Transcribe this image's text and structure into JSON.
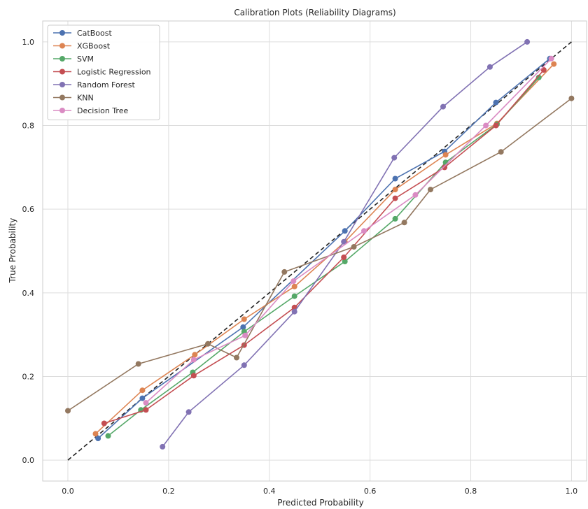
{
  "chart_data": {
    "type": "line",
    "title": "Calibration Plots (Reliability Diagrams)",
    "xlabel": "Predicted Probability",
    "ylabel": "True Probability",
    "xlim": [
      -0.05,
      1.03
    ],
    "ylim": [
      -0.05,
      1.05
    ],
    "xticks": [
      "0.0",
      "0.2",
      "0.4",
      "0.6",
      "0.8",
      "1.0"
    ],
    "yticks": [
      "0.0",
      "0.2",
      "0.4",
      "0.6",
      "0.8",
      "1.0"
    ],
    "grid": true,
    "legend_position": "top-left",
    "reference_line": {
      "style": "dashed",
      "color": "#222222",
      "points": [
        [
          0,
          0
        ],
        [
          1,
          1
        ]
      ]
    },
    "series": [
      {
        "name": "CatBoost",
        "color": "#4c72b0",
        "points": [
          [
            0.06,
            0.052
          ],
          [
            0.148,
            0.148
          ],
          [
            0.348,
            0.318
          ],
          [
            0.55,
            0.548
          ],
          [
            0.65,
            0.673
          ],
          [
            0.748,
            0.738
          ],
          [
            0.85,
            0.855
          ],
          [
            0.957,
            0.96
          ]
        ]
      },
      {
        "name": "XGBoost",
        "color": "#dd8452",
        "points": [
          [
            0.055,
            0.063
          ],
          [
            0.148,
            0.167
          ],
          [
            0.252,
            0.252
          ],
          [
            0.35,
            0.337
          ],
          [
            0.45,
            0.415
          ],
          [
            0.55,
            0.522
          ],
          [
            0.65,
            0.647
          ],
          [
            0.75,
            0.73
          ],
          [
            0.852,
            0.805
          ],
          [
            0.965,
            0.947
          ]
        ]
      },
      {
        "name": "SVM",
        "color": "#55a868",
        "points": [
          [
            0.08,
            0.058
          ],
          [
            0.145,
            0.12
          ],
          [
            0.248,
            0.21
          ],
          [
            0.35,
            0.307
          ],
          [
            0.45,
            0.392
          ],
          [
            0.55,
            0.475
          ],
          [
            0.65,
            0.577
          ],
          [
            0.75,
            0.712
          ],
          [
            0.852,
            0.803
          ],
          [
            0.935,
            0.915
          ]
        ]
      },
      {
        "name": "Logistic Regression",
        "color": "#c44e52",
        "points": [
          [
            0.072,
            0.088
          ],
          [
            0.155,
            0.12
          ],
          [
            0.25,
            0.202
          ],
          [
            0.35,
            0.275
          ],
          [
            0.45,
            0.365
          ],
          [
            0.548,
            0.485
          ],
          [
            0.65,
            0.626
          ],
          [
            0.748,
            0.7
          ],
          [
            0.85,
            0.8
          ],
          [
            0.945,
            0.933
          ]
        ]
      },
      {
        "name": "Random Forest",
        "color": "#8172b3",
        "points": [
          [
            0.188,
            0.032
          ],
          [
            0.24,
            0.115
          ],
          [
            0.35,
            0.227
          ],
          [
            0.45,
            0.355
          ],
          [
            0.548,
            0.522
          ],
          [
            0.648,
            0.723
          ],
          [
            0.745,
            0.845
          ],
          [
            0.838,
            0.94
          ],
          [
            0.912,
            1.0
          ]
        ]
      },
      {
        "name": "KNN",
        "color": "#937860",
        "points": [
          [
            0.0,
            0.118
          ],
          [
            0.14,
            0.23
          ],
          [
            0.278,
            0.278
          ],
          [
            0.335,
            0.245
          ],
          [
            0.43,
            0.45
          ],
          [
            0.568,
            0.51
          ],
          [
            0.668,
            0.568
          ],
          [
            0.72,
            0.647
          ],
          [
            0.86,
            0.737
          ],
          [
            1.0,
            0.865
          ]
        ]
      },
      {
        "name": "Decision Tree",
        "color": "#da8bc3",
        "points": [
          [
            0.155,
            0.137
          ],
          [
            0.25,
            0.24
          ],
          [
            0.352,
            0.298
          ],
          [
            0.448,
            0.428
          ],
          [
            0.588,
            0.548
          ],
          [
            0.69,
            0.634
          ],
          [
            0.83,
            0.8
          ],
          [
            0.96,
            0.96
          ]
        ]
      }
    ]
  }
}
